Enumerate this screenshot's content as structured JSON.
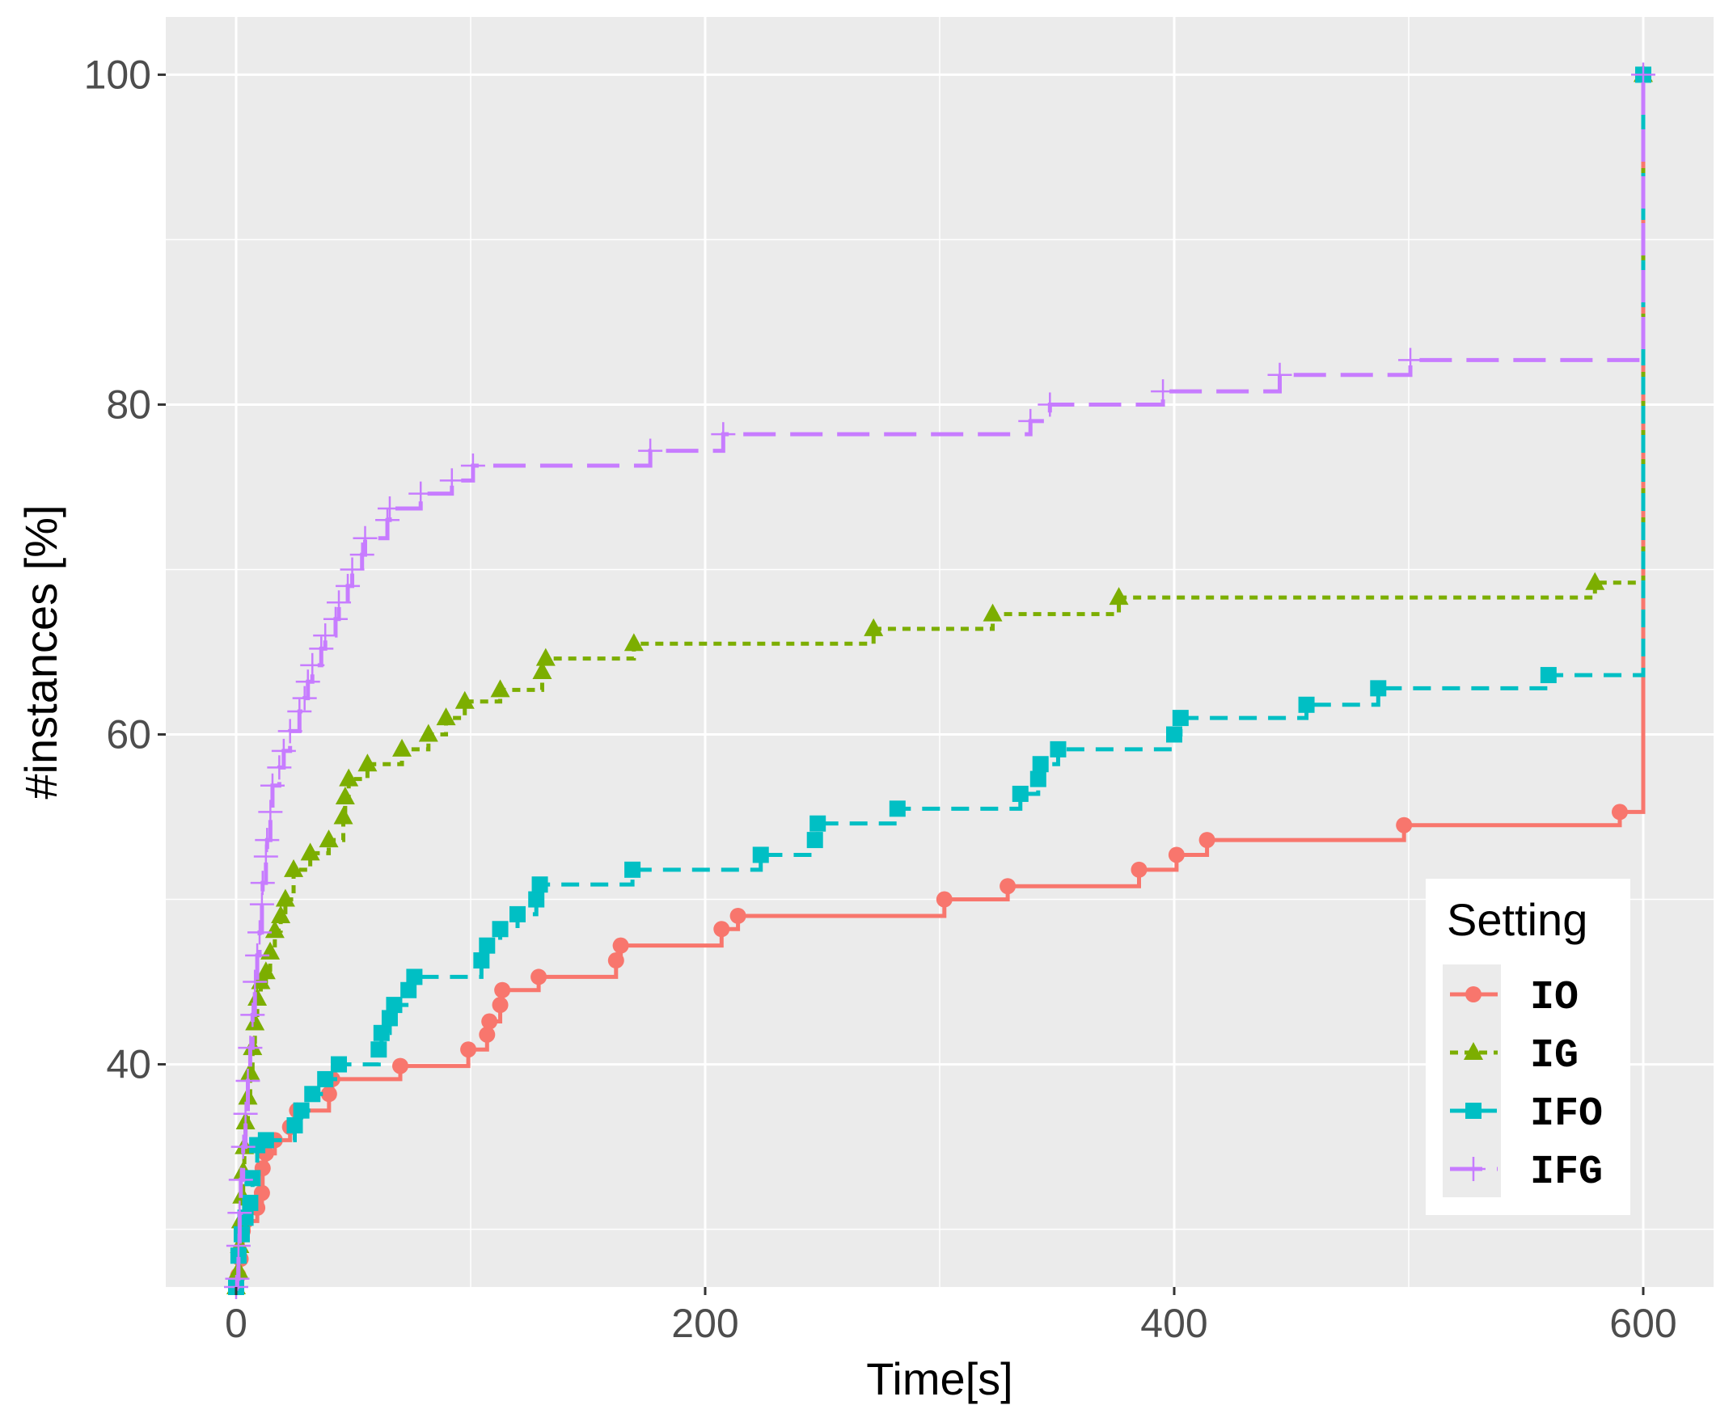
{
  "chart_data": {
    "type": "line",
    "step": true,
    "title": "",
    "xlabel": "Time[s]",
    "ylabel": "#instances [%]",
    "xlim": [
      -30,
      630
    ],
    "ylim": [
      26.5,
      103.5
    ],
    "xticks": [
      0,
      200,
      400,
      600
    ],
    "yticks": [
      40,
      60,
      80,
      100
    ],
    "grid": true,
    "background": "#EBEBEB",
    "legend": {
      "title": "Setting",
      "position": "bottom-right"
    },
    "series": [
      {
        "name": "IO",
        "color": "#F8766D",
        "linetype": "solid",
        "marker": "circle",
        "points": [
          [
            0,
            26.5
          ],
          [
            0.9,
            27.2
          ],
          [
            1.9,
            28.2
          ],
          [
            2.8,
            29.9
          ],
          [
            4,
            30.5
          ],
          [
            9,
            31.3
          ],
          [
            11,
            32.2
          ],
          [
            11.3,
            33.7
          ],
          [
            12.7,
            34.6
          ],
          [
            16.5,
            35.4
          ],
          [
            23,
            36.2
          ],
          [
            26,
            37.2
          ],
          [
            39.6,
            38.2
          ],
          [
            41,
            39.1
          ],
          [
            70,
            39.9
          ],
          [
            99,
            40.9
          ],
          [
            107,
            41.8
          ],
          [
            108,
            42.6
          ],
          [
            112.6,
            43.6
          ],
          [
            113.5,
            44.5
          ],
          [
            129,
            45.3
          ],
          [
            162,
            46.3
          ],
          [
            164,
            47.2
          ],
          [
            207,
            48.2
          ],
          [
            214,
            49.0
          ],
          [
            302,
            50.0
          ],
          [
            329,
            50.8
          ],
          [
            385,
            51.8
          ],
          [
            401,
            52.7
          ],
          [
            414,
            53.6
          ],
          [
            498,
            54.5
          ],
          [
            590,
            55.3
          ],
          [
            600,
            100
          ]
        ]
      },
      {
        "name": "IG",
        "color": "#7CAE00",
        "linetype": "dotted",
        "marker": "triangle",
        "points": [
          [
            0,
            26.5
          ],
          [
            1,
            27.5
          ],
          [
            1.5,
            29
          ],
          [
            2,
            30.5
          ],
          [
            2.5,
            32
          ],
          [
            3,
            33.5
          ],
          [
            3.5,
            35
          ],
          [
            4,
            36.5
          ],
          [
            5,
            38
          ],
          [
            6,
            39.5
          ],
          [
            7,
            41
          ],
          [
            8,
            42.5
          ],
          [
            9,
            44
          ],
          [
            10.5,
            45
          ],
          [
            12.7,
            45.6
          ],
          [
            14.5,
            46.8
          ],
          [
            16.5,
            48.1
          ],
          [
            19,
            49.0
          ],
          [
            21,
            50.0
          ],
          [
            24.5,
            51.8
          ],
          [
            31.6,
            52.8
          ],
          [
            39.5,
            53.6
          ],
          [
            45.7,
            55.0
          ],
          [
            46.5,
            56.2
          ],
          [
            48,
            57.3
          ],
          [
            56,
            58.2
          ],
          [
            70.7,
            59.1
          ],
          [
            82,
            60.0
          ],
          [
            89.5,
            61.0
          ],
          [
            97.5,
            62.0
          ],
          [
            112.6,
            62.7
          ],
          [
            130.5,
            63.8
          ],
          [
            132,
            64.6
          ],
          [
            169.6,
            65.5
          ],
          [
            271.8,
            66.4
          ],
          [
            322.6,
            67.3
          ],
          [
            376.4,
            68.3
          ],
          [
            579.4,
            69.2
          ],
          [
            600,
            100
          ]
        ]
      },
      {
        "name": "IFO",
        "color": "#00BFC4",
        "linetype": "dashed",
        "marker": "square",
        "points": [
          [
            0,
            26.5
          ],
          [
            1,
            28.4
          ],
          [
            2.4,
            29.7
          ],
          [
            4,
            30.7
          ],
          [
            6,
            31.6
          ],
          [
            7,
            33.1
          ],
          [
            9,
            35.1
          ],
          [
            12.7,
            35.4
          ],
          [
            25,
            36.3
          ],
          [
            27.8,
            37.2
          ],
          [
            32.5,
            38.2
          ],
          [
            38,
            39.1
          ],
          [
            43.8,
            40.0
          ],
          [
            60.8,
            40.9
          ],
          [
            62,
            41.9
          ],
          [
            65.5,
            42.8
          ],
          [
            67.4,
            43.6
          ],
          [
            73.5,
            44.5
          ],
          [
            76,
            45.3
          ],
          [
            104.6,
            46.3
          ],
          [
            107,
            47.2
          ],
          [
            112.6,
            48.2
          ],
          [
            120,
            49.1
          ],
          [
            128,
            50.0
          ],
          [
            129.5,
            50.9
          ],
          [
            169,
            51.8
          ],
          [
            223.7,
            52.7
          ],
          [
            246.8,
            53.6
          ],
          [
            248,
            54.6
          ],
          [
            282,
            55.5
          ],
          [
            334.4,
            56.4
          ],
          [
            342,
            57.3
          ],
          [
            343,
            58.2
          ],
          [
            350.5,
            59.1
          ],
          [
            400,
            60.0
          ],
          [
            402.7,
            61.0
          ],
          [
            456.4,
            61.8
          ],
          [
            487,
            62.8
          ],
          [
            559.6,
            63.6
          ],
          [
            600,
            100
          ]
        ]
      },
      {
        "name": "IFG",
        "color": "#C77CFF",
        "linetype": "longdash",
        "marker": "plus",
        "points": [
          [
            0,
            26.5
          ],
          [
            0.5,
            27
          ],
          [
            1,
            29
          ],
          [
            1.5,
            31
          ],
          [
            2,
            33
          ],
          [
            3,
            35
          ],
          [
            4,
            37
          ],
          [
            5,
            39
          ],
          [
            6,
            41
          ],
          [
            7,
            43
          ],
          [
            8,
            45
          ],
          [
            9,
            46.6
          ],
          [
            10,
            48
          ],
          [
            11,
            49.7
          ],
          [
            11.3,
            51
          ],
          [
            12.7,
            52.6
          ],
          [
            13.2,
            53.6
          ],
          [
            14.6,
            55.3
          ],
          [
            15.5,
            56.9
          ],
          [
            18.4,
            58
          ],
          [
            20.3,
            59
          ],
          [
            23,
            60.2
          ],
          [
            27,
            61.4
          ],
          [
            29.2,
            62.2
          ],
          [
            30.6,
            63.2
          ],
          [
            32.5,
            64.2
          ],
          [
            36.3,
            65.2
          ],
          [
            38,
            66.0
          ],
          [
            42.4,
            67
          ],
          [
            43.8,
            68.0
          ],
          [
            47.6,
            69
          ],
          [
            49.5,
            70
          ],
          [
            53.7,
            70.9
          ],
          [
            55,
            71.9
          ],
          [
            64.5,
            73
          ],
          [
            65.5,
            73.7
          ],
          [
            78.7,
            74.6
          ],
          [
            92,
            75.4
          ],
          [
            101,
            76.3
          ],
          [
            176.6,
            77.2
          ],
          [
            207.7,
            78.2
          ],
          [
            338.7,
            79
          ],
          [
            347,
            80
          ],
          [
            395.2,
            80.8
          ],
          [
            445,
            81.8
          ],
          [
            500.7,
            82.7
          ],
          [
            600,
            100
          ]
        ]
      }
    ]
  }
}
